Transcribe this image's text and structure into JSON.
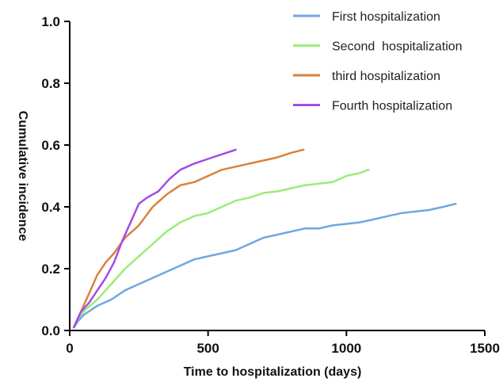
{
  "chart_data": {
    "type": "line",
    "xlabel": "Time to hospitalization (days)",
    "ylabel": "Cumulative incidence",
    "xlim": [
      0,
      1500
    ],
    "ylim": [
      0,
      1.0
    ],
    "x_ticks": [
      0,
      500,
      1000,
      1500
    ],
    "y_ticks": [
      0.0,
      0.2,
      0.4,
      0.6,
      0.8,
      1.0
    ],
    "x_tick_labels": [
      "0",
      "500",
      "1000",
      "1500"
    ],
    "y_tick_labels": [
      "0.0",
      "0.2",
      "0.4",
      "0.6",
      "0.8",
      "1.0"
    ],
    "grid": false,
    "legend_position": "top-right",
    "series": [
      {
        "name": "First hospitalization",
        "color": "#6fa8e0",
        "points": [
          [
            15,
            0.01
          ],
          [
            30,
            0.03
          ],
          [
            50,
            0.05
          ],
          [
            100,
            0.08
          ],
          [
            150,
            0.1
          ],
          [
            200,
            0.13
          ],
          [
            250,
            0.15
          ],
          [
            300,
            0.17
          ],
          [
            350,
            0.19
          ],
          [
            400,
            0.21
          ],
          [
            450,
            0.23
          ],
          [
            500,
            0.24
          ],
          [
            550,
            0.25
          ],
          [
            600,
            0.26
          ],
          [
            650,
            0.28
          ],
          [
            700,
            0.3
          ],
          [
            750,
            0.31
          ],
          [
            800,
            0.32
          ],
          [
            850,
            0.33
          ],
          [
            900,
            0.33
          ],
          [
            950,
            0.34
          ],
          [
            1000,
            0.345
          ],
          [
            1050,
            0.35
          ],
          [
            1100,
            0.36
          ],
          [
            1150,
            0.37
          ],
          [
            1200,
            0.38
          ],
          [
            1250,
            0.385
          ],
          [
            1300,
            0.39
          ],
          [
            1350,
            0.4
          ],
          [
            1395,
            0.41
          ]
        ]
      },
      {
        "name": "Second  hospitalization",
        "color": "#99ee77",
        "points": [
          [
            15,
            0.01
          ],
          [
            30,
            0.04
          ],
          [
            60,
            0.07
          ],
          [
            100,
            0.1
          ],
          [
            150,
            0.15
          ],
          [
            200,
            0.2
          ],
          [
            250,
            0.24
          ],
          [
            300,
            0.28
          ],
          [
            350,
            0.32
          ],
          [
            400,
            0.35
          ],
          [
            450,
            0.37
          ],
          [
            500,
            0.38
          ],
          [
            550,
            0.4
          ],
          [
            600,
            0.42
          ],
          [
            650,
            0.43
          ],
          [
            700,
            0.445
          ],
          [
            750,
            0.45
          ],
          [
            800,
            0.46
          ],
          [
            850,
            0.47
          ],
          [
            900,
            0.475
          ],
          [
            950,
            0.48
          ],
          [
            1000,
            0.5
          ],
          [
            1050,
            0.51
          ],
          [
            1080,
            0.52
          ]
        ]
      },
      {
        "name": "third hospitalization",
        "color": "#d9823c",
        "points": [
          [
            15,
            0.01
          ],
          [
            40,
            0.06
          ],
          [
            70,
            0.12
          ],
          [
            100,
            0.18
          ],
          [
            130,
            0.22
          ],
          [
            160,
            0.25
          ],
          [
            200,
            0.3
          ],
          [
            250,
            0.34
          ],
          [
            300,
            0.4
          ],
          [
            350,
            0.44
          ],
          [
            400,
            0.47
          ],
          [
            450,
            0.48
          ],
          [
            500,
            0.5
          ],
          [
            550,
            0.52
          ],
          [
            600,
            0.53
          ],
          [
            650,
            0.54
          ],
          [
            700,
            0.55
          ],
          [
            750,
            0.56
          ],
          [
            800,
            0.575
          ],
          [
            845,
            0.585
          ]
        ]
      },
      {
        "name": "Fourth hospitalization",
        "color": "#a44be8",
        "points": [
          [
            15,
            0.01
          ],
          [
            40,
            0.06
          ],
          [
            70,
            0.09
          ],
          [
            100,
            0.13
          ],
          [
            130,
            0.17
          ],
          [
            160,
            0.22
          ],
          [
            190,
            0.29
          ],
          [
            220,
            0.35
          ],
          [
            250,
            0.41
          ],
          [
            280,
            0.43
          ],
          [
            320,
            0.45
          ],
          [
            360,
            0.49
          ],
          [
            400,
            0.52
          ],
          [
            450,
            0.54
          ],
          [
            500,
            0.555
          ],
          [
            550,
            0.57
          ],
          [
            600,
            0.585
          ]
        ]
      }
    ]
  }
}
